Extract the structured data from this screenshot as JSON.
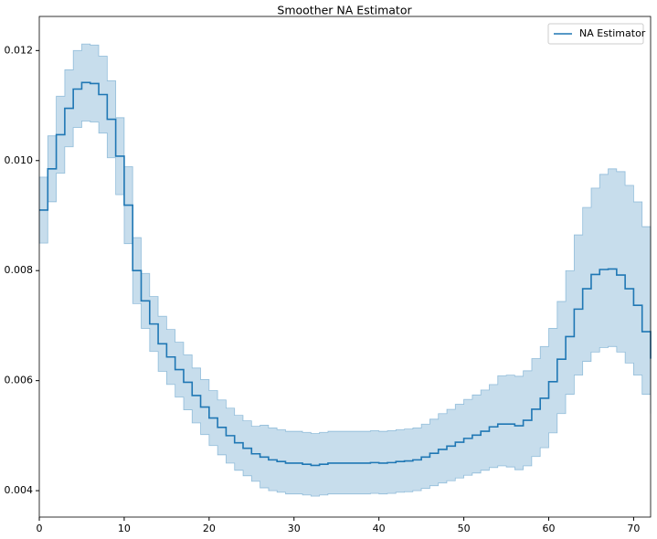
{
  "chart_data": {
    "type": "step",
    "title": "Smoother NA Estimator",
    "x": [
      0,
      1,
      2,
      3,
      4,
      5,
      6,
      7,
      8,
      9,
      10,
      11,
      12,
      13,
      14,
      15,
      16,
      17,
      18,
      19,
      20,
      21,
      22,
      23,
      24,
      25,
      26,
      27,
      28,
      29,
      30,
      31,
      32,
      33,
      34,
      35,
      36,
      37,
      38,
      39,
      40,
      41,
      42,
      43,
      44,
      45,
      46,
      47,
      48,
      49,
      50,
      51,
      52,
      53,
      54,
      55,
      56,
      57,
      58,
      59,
      60,
      61,
      62,
      63,
      64,
      65,
      66,
      67,
      68,
      69,
      70,
      71,
      72
    ],
    "series": [
      {
        "name": "NA Estimator",
        "color": "#1f77b4",
        "values": [
          0.0091,
          0.00985,
          0.01047,
          0.01095,
          0.0113,
          0.01142,
          0.0114,
          0.0112,
          0.01075,
          0.01008,
          0.00919,
          0.008,
          0.00745,
          0.00703,
          0.00667,
          0.00643,
          0.0062,
          0.00597,
          0.00573,
          0.00552,
          0.00532,
          0.00515,
          0.005,
          0.00487,
          0.00477,
          0.00467,
          0.00461,
          0.00456,
          0.00453,
          0.0045,
          0.0045,
          0.00448,
          0.00446,
          0.00448,
          0.0045,
          0.0045,
          0.0045,
          0.0045,
          0.0045,
          0.00451,
          0.0045,
          0.00451,
          0.00453,
          0.00454,
          0.00456,
          0.00461,
          0.00468,
          0.00475,
          0.00481,
          0.00488,
          0.00495,
          0.00501,
          0.00508,
          0.00516,
          0.00521,
          0.00521,
          0.00518,
          0.00528,
          0.00548,
          0.00568,
          0.00598,
          0.00639,
          0.0068,
          0.0073,
          0.00767,
          0.00793,
          0.00802,
          0.00803,
          0.00792,
          0.00767,
          0.00737,
          0.00689,
          0.0064
        ],
        "upper": [
          0.0097,
          0.01045,
          0.01117,
          0.01165,
          0.012,
          0.01212,
          0.0121,
          0.0119,
          0.01145,
          0.01078,
          0.00989,
          0.0086,
          0.00795,
          0.00753,
          0.00717,
          0.00693,
          0.0067,
          0.00647,
          0.00623,
          0.00602,
          0.00582,
          0.00565,
          0.0055,
          0.00537,
          0.00527,
          0.00517,
          0.00519,
          0.00514,
          0.00511,
          0.00508,
          0.00508,
          0.00506,
          0.00504,
          0.00506,
          0.00508,
          0.00508,
          0.00508,
          0.00508,
          0.00508,
          0.00509,
          0.00508,
          0.00509,
          0.00511,
          0.00512,
          0.00514,
          0.00521,
          0.0053,
          0.0054,
          0.00548,
          0.00557,
          0.00566,
          0.00574,
          0.00583,
          0.00593,
          0.00609,
          0.0061,
          0.00608,
          0.00618,
          0.0064,
          0.00662,
          0.00695,
          0.00744,
          0.008,
          0.00865,
          0.00915,
          0.0095,
          0.00975,
          0.00985,
          0.0098,
          0.00955,
          0.00925,
          0.0088,
          0.0083
        ],
        "lower": [
          0.0085,
          0.00925,
          0.00977,
          0.01025,
          0.0106,
          0.01072,
          0.0107,
          0.0105,
          0.01005,
          0.00938,
          0.00849,
          0.0074,
          0.00695,
          0.00653,
          0.00617,
          0.00593,
          0.0057,
          0.00547,
          0.00523,
          0.00502,
          0.00482,
          0.00465,
          0.0045,
          0.00437,
          0.00427,
          0.00417,
          0.00405,
          0.004,
          0.00397,
          0.00394,
          0.00394,
          0.00392,
          0.0039,
          0.00392,
          0.00394,
          0.00394,
          0.00394,
          0.00394,
          0.00394,
          0.00395,
          0.00394,
          0.00395,
          0.00397,
          0.00398,
          0.004,
          0.00404,
          0.00409,
          0.00414,
          0.00418,
          0.00423,
          0.00428,
          0.00432,
          0.00437,
          0.00442,
          0.00445,
          0.00443,
          0.00438,
          0.00445,
          0.00462,
          0.00478,
          0.00505,
          0.0054,
          0.00575,
          0.0061,
          0.00635,
          0.00652,
          0.0066,
          0.00662,
          0.00652,
          0.00632,
          0.0061,
          0.00575,
          0.0054
        ],
        "band_opacity": 0.25
      }
    ],
    "xlim": [
      0,
      72
    ],
    "xticks": [
      0,
      10,
      20,
      30,
      40,
      50,
      60,
      70
    ],
    "ylim": [
      0.00352,
      0.01262
    ],
    "yticks": [
      0.004,
      0.006,
      0.008,
      {
        "value": 0.01,
        "label": "0.010"
      },
      0.012
    ],
    "legend": "upper right"
  }
}
